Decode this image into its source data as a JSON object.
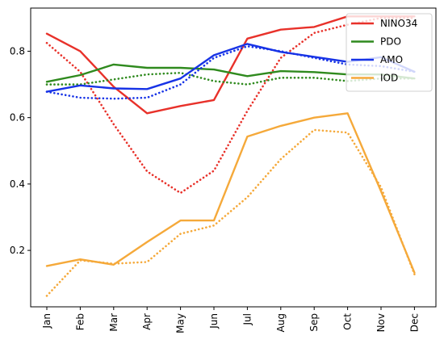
{
  "chart_data": {
    "type": "line",
    "title": "",
    "xlabel": "",
    "ylabel": "",
    "categories": [
      "Jan",
      "Feb",
      "Mar",
      "Apr",
      "May",
      "Jun",
      "Jul",
      "Aug",
      "Sep",
      "Oct",
      "Nov",
      "Dec"
    ],
    "ylim": [
      0.03,
      0.93
    ],
    "yticks": [
      0.2,
      0.4,
      0.6,
      0.8
    ],
    "ytick_labels": [
      "0.2",
      "0.4",
      "0.6",
      "0.8"
    ],
    "grid": false,
    "legend_position": "top-right",
    "series": [
      {
        "name": "NINO34",
        "color": "#e8312a",
        "style": "solid",
        "values": [
          0.853,
          0.8,
          0.693,
          0.613,
          0.635,
          0.653,
          0.838,
          0.865,
          0.873,
          0.905,
          0.905,
          0.905
        ]
      },
      {
        "name": "",
        "color": "#e8312a",
        "style": "dotted",
        "values": [
          0.825,
          0.738,
          0.58,
          0.438,
          0.373,
          0.44,
          0.62,
          0.78,
          0.855,
          0.88,
          0.9,
          0.9
        ]
      },
      {
        "name": "PDO",
        "color": "#2f8a1e",
        "style": "solid",
        "values": [
          0.708,
          0.728,
          0.76,
          0.75,
          0.75,
          0.745,
          0.725,
          0.74,
          0.737,
          0.73,
          0.73,
          0.718
        ]
      },
      {
        "name": "",
        "color": "#2f8a1e",
        "style": "dotted",
        "values": [
          0.7,
          0.7,
          0.715,
          0.73,
          0.735,
          0.71,
          0.7,
          0.72,
          0.72,
          0.71,
          0.718,
          0.718
        ]
      },
      {
        "name": "AMO",
        "color": "#1733e6",
        "style": "solid",
        "values": [
          0.678,
          0.697,
          0.688,
          0.686,
          0.718,
          0.788,
          0.822,
          0.798,
          0.783,
          0.768,
          0.782,
          0.738
        ]
      },
      {
        "name": "",
        "color": "#1733e6",
        "style": "dotted",
        "values": [
          0.678,
          0.66,
          0.657,
          0.66,
          0.7,
          0.78,
          0.815,
          0.8,
          0.78,
          0.76,
          0.755,
          0.738
        ]
      },
      {
        "name": "IOD",
        "color": "#f5a93a",
        "style": "solid",
        "values": [
          0.153,
          0.173,
          0.157,
          0.225,
          0.29,
          0.29,
          0.543,
          0.575,
          0.6,
          0.613,
          0.378,
          0.133
        ]
      },
      {
        "name": "",
        "color": "#f5a93a",
        "style": "dotted",
        "values": [
          0.063,
          0.17,
          0.16,
          0.165,
          0.25,
          0.275,
          0.36,
          0.475,
          0.563,
          0.555,
          0.39,
          0.128
        ]
      }
    ]
  }
}
